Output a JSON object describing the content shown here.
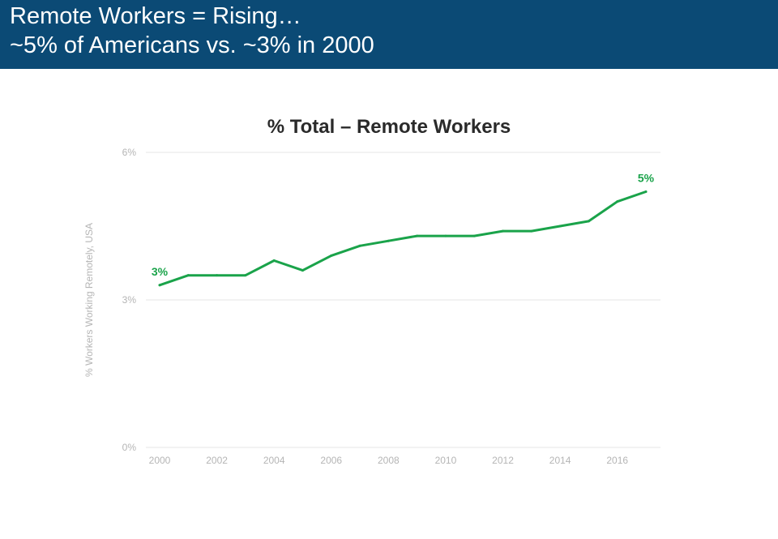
{
  "header": {
    "line1": "Remote Workers = Rising…",
    "line2": "~5% of Americans vs. ~3% in 2000"
  },
  "colors": {
    "header_bg": "#0b4a75",
    "line": "#1aa34a",
    "grid": "#e6e6e6",
    "tick_text": "#b5b5b5"
  },
  "chart_data": {
    "type": "line",
    "title": "% Total – Remote Workers",
    "xlabel": "",
    "ylabel": "% Workers Working Remotely, USA",
    "xlim": [
      2000,
      2017
    ],
    "ylim": [
      0,
      6
    ],
    "x_ticks": [
      "2000",
      "2002",
      "2004",
      "2006",
      "2008",
      "2010",
      "2012",
      "2014",
      "2016"
    ],
    "y_ticks": [
      "0%",
      "3%",
      "6%"
    ],
    "grid": true,
    "legend": "none",
    "series": [
      {
        "x": [
          2000,
          2001,
          2002,
          2003,
          2004,
          2005,
          2006,
          2007,
          2008,
          2009,
          2010,
          2011,
          2012,
          2013,
          2014,
          2015,
          2016,
          2017
        ],
        "values": [
          3.3,
          3.5,
          3.5,
          3.5,
          3.8,
          3.6,
          3.9,
          4.1,
          4.2,
          4.3,
          4.3,
          4.3,
          4.4,
          4.4,
          4.5,
          4.6,
          5.0,
          5.2
        ]
      }
    ],
    "annotations": [
      {
        "x": 2000,
        "y": 3.3,
        "text": "3%"
      },
      {
        "x": 2017,
        "y": 5.2,
        "text": "5%"
      }
    ]
  }
}
